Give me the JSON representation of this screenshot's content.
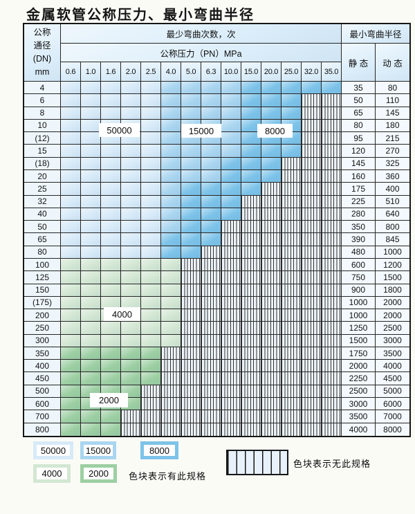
{
  "page": {
    "title": "金属软管公称压力、最小弯曲半径"
  },
  "colors": {
    "c50000": "#d7eaf8",
    "c15000": "#a9d5f0",
    "c8000": "#7dc3e9",
    "c4000": "#d3e7d3",
    "c2000": "#9dcfa3",
    "nospec_fill": "#eef5fb",
    "grid_line": "#252525",
    "header_bg": "#dceefa"
  },
  "chart_data": {
    "type": "heatmap",
    "title": "金属软管公称压力、最小弯曲半径",
    "cycles_header": "最少弯曲次数，次",
    "pressure_header": "公称压力（PN）MPa",
    "radius_header": "最小弯曲半径",
    "static_label": "静 态",
    "dynamic_label": "动 态",
    "row_header": [
      "公称",
      "通径",
      "(DN)",
      "mm"
    ],
    "columns": [
      "0.6",
      "1.0",
      "1.6",
      "2.0",
      "2.5",
      "4.0",
      "5.0",
      "6.3",
      "10.0",
      "15.0",
      "20.0",
      "25.0",
      "32.0",
      "35.0"
    ],
    "cell_values_legend": "cell value = minimum bend cycles for that DN/PN; '-' = specification not available",
    "rows": [
      {
        "dn": "4",
        "cells": [
          "50000",
          "50000",
          "50000",
          "50000",
          "50000",
          "15000",
          "15000",
          "15000",
          "15000",
          "8000",
          "8000",
          "8000",
          "8000",
          "8000"
        ],
        "static": "35",
        "dynamic": "80"
      },
      {
        "dn": "6",
        "cells": [
          "50000",
          "50000",
          "50000",
          "50000",
          "50000",
          "15000",
          "15000",
          "15000",
          "15000",
          "8000",
          "8000",
          "8000",
          "-",
          "-"
        ],
        "static": "50",
        "dynamic": "110"
      },
      {
        "dn": "8",
        "cells": [
          "50000",
          "50000",
          "50000",
          "50000",
          "50000",
          "15000",
          "15000",
          "15000",
          "15000",
          "8000",
          "8000",
          "8000",
          "-",
          "-"
        ],
        "static": "65",
        "dynamic": "145"
      },
      {
        "dn": "10",
        "cells": [
          "50000",
          "50000",
          "50000",
          "50000",
          "50000",
          "15000",
          "15000",
          "15000",
          "15000",
          "8000",
          "8000",
          "8000",
          "-",
          "-"
        ],
        "static": "80",
        "dynamic": "180"
      },
      {
        "dn": "(12)",
        "cells": [
          "50000",
          "50000",
          "50000",
          "50000",
          "50000",
          "15000",
          "15000",
          "15000",
          "15000",
          "8000",
          "8000",
          "8000",
          "-",
          "-"
        ],
        "static": "95",
        "dynamic": "215"
      },
      {
        "dn": "15",
        "cells": [
          "50000",
          "50000",
          "50000",
          "50000",
          "50000",
          "15000",
          "15000",
          "15000",
          "15000",
          "8000",
          "8000",
          "8000",
          "-",
          "-"
        ],
        "static": "120",
        "dynamic": "270"
      },
      {
        "dn": "(18)",
        "cells": [
          "50000",
          "50000",
          "50000",
          "50000",
          "50000",
          "15000",
          "15000",
          "15000",
          "8000",
          "8000",
          "8000",
          "-",
          "-",
          "-"
        ],
        "static": "145",
        "dynamic": "325"
      },
      {
        "dn": "20",
        "cells": [
          "50000",
          "50000",
          "50000",
          "50000",
          "50000",
          "15000",
          "15000",
          "15000",
          "8000",
          "8000",
          "8000",
          "-",
          "-",
          "-"
        ],
        "static": "160",
        "dynamic": "360"
      },
      {
        "dn": "25",
        "cells": [
          "50000",
          "50000",
          "50000",
          "50000",
          "50000",
          "15000",
          "8000",
          "8000",
          "8000",
          "8000",
          "-",
          "-",
          "-",
          "-"
        ],
        "static": "175",
        "dynamic": "400"
      },
      {
        "dn": "32",
        "cells": [
          "50000",
          "50000",
          "50000",
          "50000",
          "50000",
          "15000",
          "8000",
          "8000",
          "8000",
          "-",
          "-",
          "-",
          "-",
          "-"
        ],
        "static": "225",
        "dynamic": "510"
      },
      {
        "dn": "40",
        "cells": [
          "50000",
          "50000",
          "50000",
          "50000",
          "50000",
          "15000",
          "8000",
          "8000",
          "8000",
          "-",
          "-",
          "-",
          "-",
          "-"
        ],
        "static": "280",
        "dynamic": "640"
      },
      {
        "dn": "50",
        "cells": [
          "50000",
          "50000",
          "50000",
          "50000",
          "50000",
          "15000",
          "8000",
          "8000",
          "-",
          "-",
          "-",
          "-",
          "-",
          "-"
        ],
        "static": "350",
        "dynamic": "800"
      },
      {
        "dn": "65",
        "cells": [
          "50000",
          "50000",
          "50000",
          "50000",
          "50000",
          "8000",
          "8000",
          "8000",
          "-",
          "-",
          "-",
          "-",
          "-",
          "-"
        ],
        "static": "390",
        "dynamic": "845"
      },
      {
        "dn": "80",
        "cells": [
          "50000",
          "50000",
          "50000",
          "50000",
          "50000",
          "8000",
          "8000",
          "-",
          "-",
          "-",
          "-",
          "-",
          "-",
          "-"
        ],
        "static": "480",
        "dynamic": "1000"
      },
      {
        "dn": "100",
        "cells": [
          "4000",
          "4000",
          "4000",
          "4000",
          "4000",
          "4000",
          "-",
          "-",
          "-",
          "-",
          "-",
          "-",
          "-",
          "-"
        ],
        "static": "600",
        "dynamic": "1200"
      },
      {
        "dn": "125",
        "cells": [
          "4000",
          "4000",
          "4000",
          "4000",
          "4000",
          "4000",
          "-",
          "-",
          "-",
          "-",
          "-",
          "-",
          "-",
          "-"
        ],
        "static": "750",
        "dynamic": "1500"
      },
      {
        "dn": "150",
        "cells": [
          "4000",
          "4000",
          "4000",
          "4000",
          "4000",
          "4000",
          "-",
          "-",
          "-",
          "-",
          "-",
          "-",
          "-",
          "-"
        ],
        "static": "900",
        "dynamic": "1800"
      },
      {
        "dn": "(175)",
        "cells": [
          "4000",
          "4000",
          "4000",
          "4000",
          "4000",
          "4000",
          "-",
          "-",
          "-",
          "-",
          "-",
          "-",
          "-",
          "-"
        ],
        "static": "1000",
        "dynamic": "2000"
      },
      {
        "dn": "200",
        "cells": [
          "4000",
          "4000",
          "4000",
          "4000",
          "4000",
          "4000",
          "-",
          "-",
          "-",
          "-",
          "-",
          "-",
          "-",
          "-"
        ],
        "static": "1000",
        "dynamic": "2000"
      },
      {
        "dn": "250",
        "cells": [
          "4000",
          "4000",
          "4000",
          "4000",
          "4000",
          "4000",
          "-",
          "-",
          "-",
          "-",
          "-",
          "-",
          "-",
          "-"
        ],
        "static": "1250",
        "dynamic": "2500"
      },
      {
        "dn": "300",
        "cells": [
          "4000",
          "4000",
          "4000",
          "4000",
          "4000",
          "4000",
          "-",
          "-",
          "-",
          "-",
          "-",
          "-",
          "-",
          "-"
        ],
        "static": "1500",
        "dynamic": "3000"
      },
      {
        "dn": "350",
        "cells": [
          "2000",
          "2000",
          "2000",
          "2000",
          "2000",
          "-",
          "-",
          "-",
          "-",
          "-",
          "-",
          "-",
          "-",
          "-"
        ],
        "static": "1750",
        "dynamic": "3500"
      },
      {
        "dn": "400",
        "cells": [
          "2000",
          "2000",
          "2000",
          "2000",
          "2000",
          "-",
          "-",
          "-",
          "-",
          "-",
          "-",
          "-",
          "-",
          "-"
        ],
        "static": "2000",
        "dynamic": "4000"
      },
      {
        "dn": "450",
        "cells": [
          "2000",
          "2000",
          "2000",
          "2000",
          "2000",
          "-",
          "-",
          "-",
          "-",
          "-",
          "-",
          "-",
          "-",
          "-"
        ],
        "static": "2250",
        "dynamic": "4500"
      },
      {
        "dn": "500",
        "cells": [
          "2000",
          "2000",
          "2000",
          "2000",
          "-",
          "-",
          "-",
          "-",
          "-",
          "-",
          "-",
          "-",
          "-",
          "-"
        ],
        "static": "2500",
        "dynamic": "5000"
      },
      {
        "dn": "600",
        "cells": [
          "2000",
          "2000",
          "2000",
          "2000",
          "-",
          "-",
          "-",
          "-",
          "-",
          "-",
          "-",
          "-",
          "-",
          "-"
        ],
        "static": "3000",
        "dynamic": "6000"
      },
      {
        "dn": "700",
        "cells": [
          "2000",
          "2000",
          "2000",
          "-",
          "-",
          "-",
          "-",
          "-",
          "-",
          "-",
          "-",
          "-",
          "-",
          "-"
        ],
        "static": "3500",
        "dynamic": "7000"
      },
      {
        "dn": "800",
        "cells": [
          "2000",
          "2000",
          "2000",
          "-",
          "-",
          "-",
          "-",
          "-",
          "-",
          "-",
          "-",
          "-",
          "-",
          "-"
        ],
        "static": "4000",
        "dynamic": "8000"
      }
    ],
    "overlay_labels": [
      {
        "text": "50000"
      },
      {
        "text": "15000"
      },
      {
        "text": "8000"
      },
      {
        "text": "4000"
      },
      {
        "text": "2000"
      }
    ],
    "legend": {
      "items": [
        {
          "value": "50000",
          "color_key": "c50000"
        },
        {
          "value": "15000",
          "color_key": "c15000"
        },
        {
          "value": "8000",
          "color_key": "c8000"
        },
        {
          "value": "4000",
          "color_key": "c4000"
        },
        {
          "value": "2000",
          "color_key": "c2000"
        }
      ],
      "has_spec_text": "色块表示有此规格",
      "no_spec_text": "色块表示无此规格"
    }
  }
}
